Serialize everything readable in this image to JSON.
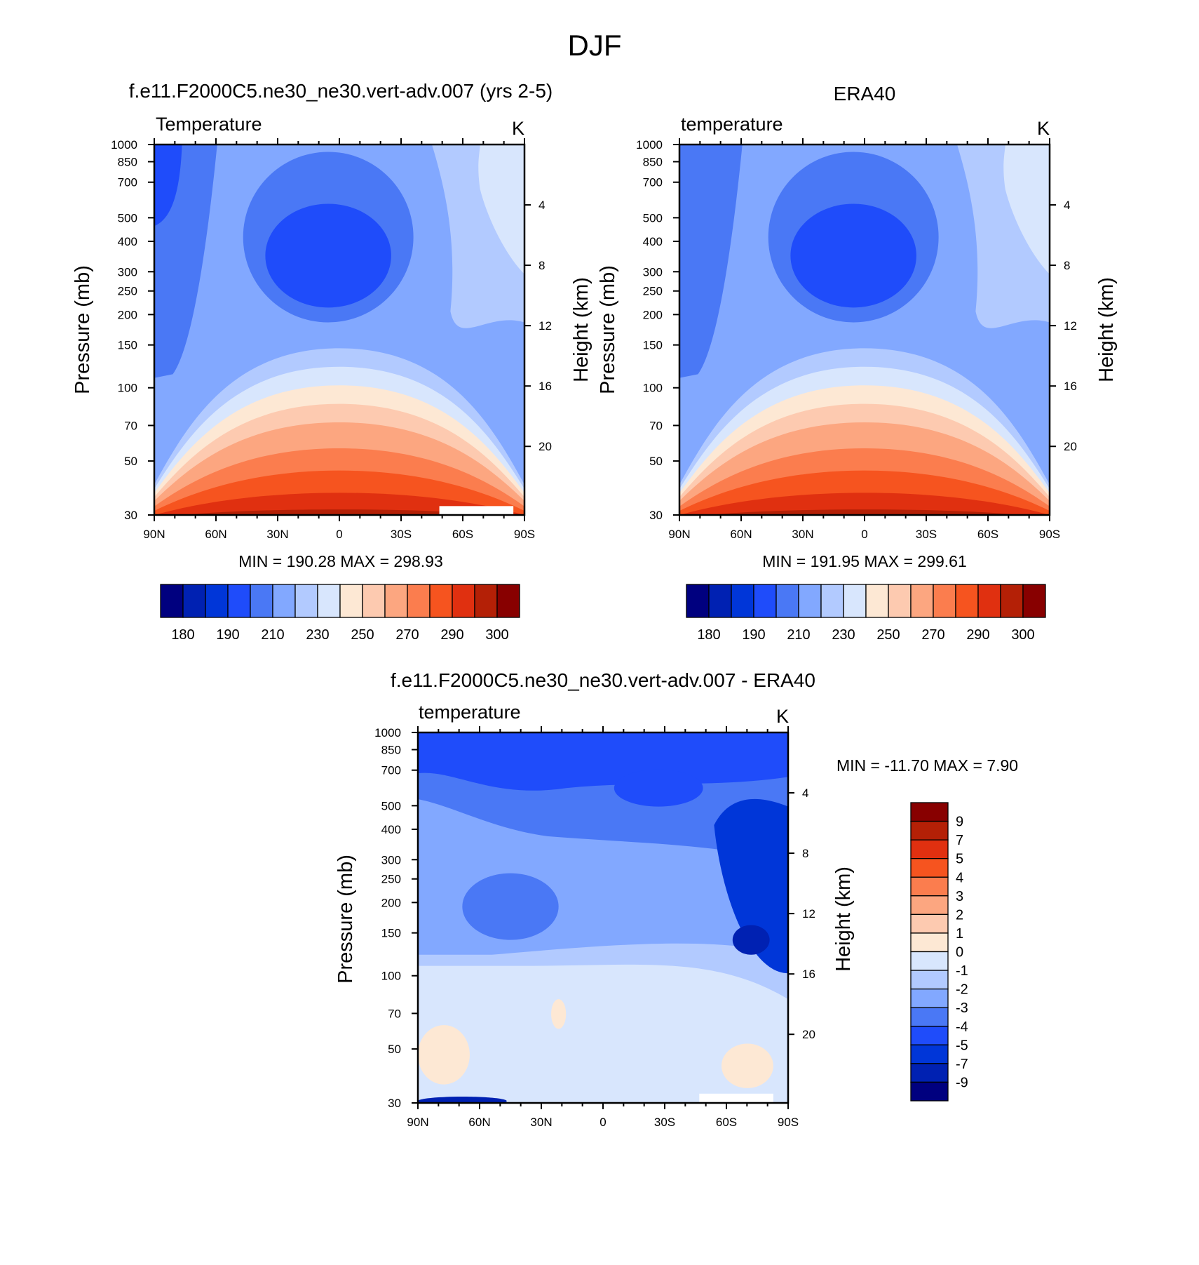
{
  "figure": {
    "title": "DJF"
  },
  "chart_data": [
    {
      "type": "heatmap",
      "panel_title": "f.e11.F2000C5.ne30_ne30.vert-adv.007 (yrs 2-5)",
      "title_left": "Temperature",
      "title_right": "K",
      "xlabel": "",
      "ylabel": "Pressure (mb)",
      "ylabel_right": "Height (km)",
      "x_ticks": [
        "90N",
        "60N",
        "30N",
        "0",
        "30S",
        "60S",
        "90S"
      ],
      "y_ticks": [
        "30",
        "50",
        "70",
        "100",
        "150",
        "200",
        "250",
        "300",
        "400",
        "500",
        "700",
        "850",
        "1000"
      ],
      "y_right_ticks": [
        "20",
        "16",
        "12",
        "8",
        "4"
      ],
      "y_scale": "log",
      "ylim": [
        1000,
        30
      ],
      "xlim": [
        90,
        -90
      ],
      "min_max_text": "MIN = 190.28  MAX = 298.93",
      "min": 190.28,
      "max": 298.93,
      "colorbar": {
        "orientation": "horizontal",
        "labels": [
          "180",
          "190",
          "210",
          "230",
          "250",
          "270",
          "290",
          "300"
        ],
        "colors": [
          "#00007f",
          "#0021b2",
          "#0036d8",
          "#1f4cfa",
          "#4a78f5",
          "#82a8ff",
          "#b2caff",
          "#d8e6fd",
          "#fde8d4",
          "#fdcab0",
          "#fca680",
          "#fb7d4e",
          "#f6541f",
          "#e03010",
          "#b42006",
          "#880000"
        ]
      },
      "colors": [
        "#1f4cfa",
        "#4a78f5",
        "#82a8ff",
        "#b2caff",
        "#d8e6fd",
        "#fde8d4",
        "#fdcab0",
        "#fca680",
        "#fb7d4e",
        "#f6541f",
        "#e03010",
        "#b42006"
      ]
    },
    {
      "type": "heatmap",
      "panel_title": "ERA40",
      "title_left": "temperature",
      "title_right": "K",
      "xlabel": "",
      "ylabel": "Pressure (mb)",
      "ylabel_right": "Height (km)",
      "x_ticks": [
        "90N",
        "60N",
        "30N",
        "0",
        "30S",
        "60S",
        "90S"
      ],
      "y_ticks": [
        "30",
        "50",
        "70",
        "100",
        "150",
        "200",
        "250",
        "300",
        "400",
        "500",
        "700",
        "850",
        "1000"
      ],
      "y_right_ticks": [
        "20",
        "16",
        "12",
        "8",
        "4"
      ],
      "y_scale": "log",
      "ylim": [
        1000,
        30
      ],
      "xlim": [
        90,
        -90
      ],
      "min_max_text": "MIN = 191.95  MAX = 299.61",
      "min": 191.95,
      "max": 299.61,
      "colorbar": {
        "orientation": "horizontal",
        "labels": [
          "180",
          "190",
          "210",
          "230",
          "250",
          "270",
          "290",
          "300"
        ],
        "colors": [
          "#00007f",
          "#0021b2",
          "#0036d8",
          "#1f4cfa",
          "#4a78f5",
          "#82a8ff",
          "#b2caff",
          "#d8e6fd",
          "#fde8d4",
          "#fdcab0",
          "#fca680",
          "#fb7d4e",
          "#f6541f",
          "#e03010",
          "#b42006",
          "#880000"
        ]
      },
      "colors": [
        "#1f4cfa",
        "#4a78f5",
        "#82a8ff",
        "#b2caff",
        "#d8e6fd",
        "#fde8d4",
        "#fdcab0",
        "#fca680",
        "#fb7d4e",
        "#f6541f",
        "#e03010",
        "#b42006"
      ]
    },
    {
      "type": "heatmap",
      "panel_title": "f.e11.F2000C5.ne30_ne30.vert-adv.007 - ERA40",
      "title_left": "temperature",
      "title_right": "K",
      "xlabel": "",
      "ylabel": "Pressure (mb)",
      "ylabel_right": "Height (km)",
      "x_ticks": [
        "90N",
        "60N",
        "30N",
        "0",
        "30S",
        "60S",
        "90S"
      ],
      "y_ticks": [
        "30",
        "50",
        "70",
        "100",
        "150",
        "200",
        "250",
        "300",
        "400",
        "500",
        "700",
        "850",
        "1000"
      ],
      "y_right_ticks": [
        "20",
        "16",
        "12",
        "8",
        "4"
      ],
      "y_scale": "log",
      "ylim": [
        1000,
        30
      ],
      "xlim": [
        90,
        -90
      ],
      "min_max_text": "MIN = -11.70  MAX =   7.90",
      "min": -11.7,
      "max": 7.9,
      "colorbar": {
        "orientation": "vertical",
        "labels": [
          "9",
          "7",
          "5",
          "4",
          "3",
          "2",
          "1",
          "0",
          "-1",
          "-2",
          "-3",
          "-4",
          "-5",
          "-7",
          "-9"
        ],
        "colors": [
          "#880000",
          "#b42006",
          "#e03010",
          "#f6541f",
          "#fb7d4e",
          "#fca680",
          "#fdcab0",
          "#fde8d4",
          "#d8e6fd",
          "#b2caff",
          "#82a8ff",
          "#4a78f5",
          "#1f4cfa",
          "#0036d8",
          "#0021b2",
          "#00007f"
        ]
      },
      "colors": [
        "#0021b2",
        "#0036d8",
        "#1f4cfa",
        "#4a78f5",
        "#82a8ff",
        "#b2caff",
        "#d8e6fd",
        "#fde8d4"
      ]
    }
  ]
}
